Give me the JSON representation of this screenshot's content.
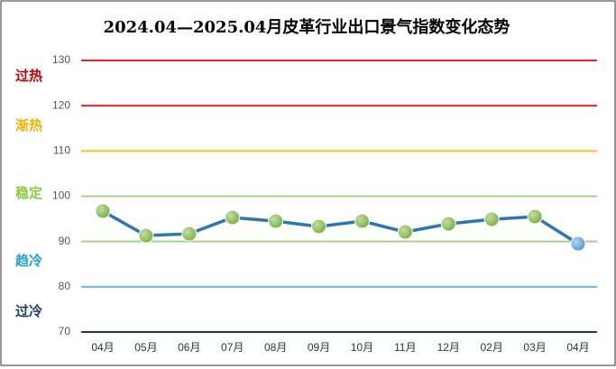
{
  "chart_data": {
    "type": "line",
    "title": "2024.04—2025.04月皮革行业出口景气指数变化态势",
    "categories": [
      "04月",
      "05月",
      "06月",
      "07月",
      "08月",
      "09月",
      "10月",
      "11月",
      "12月",
      "02月",
      "03月",
      "04月"
    ],
    "series": [
      {
        "name": "景气指数",
        "color": "#2e75b6",
        "values": [
          96.7,
          91.3,
          91.7,
          95.3,
          94.5,
          93.3,
          94.5,
          92.1,
          93.9,
          94.9,
          95.5,
          89.5
        ],
        "point_colors": [
          "#7cb342",
          "#7cb342",
          "#7cb342",
          "#7cb342",
          "#7cb342",
          "#7cb342",
          "#7cb342",
          "#7cb342",
          "#7cb342",
          "#7cb342",
          "#7cb342",
          "#5b9bd5"
        ]
      }
    ],
    "ylim": [
      70,
      130
    ],
    "yticks": [
      70,
      80,
      90,
      100,
      110,
      120,
      130
    ],
    "grid": true,
    "grid_colors": [
      "#1f3864",
      "#5bc0eb",
      "#a9d18e",
      "#a9d18e",
      "#f4c020",
      "#e8232a",
      "#e8232a"
    ],
    "annotations": [
      {
        "text": "过热",
        "color": "#c00000"
      },
      {
        "text": "渐热",
        "color": "#f0b400"
      },
      {
        "text": "稳定",
        "color": "#8dc63f"
      },
      {
        "text": "趋冷",
        "color": "#1ca0d8"
      },
      {
        "text": "过冷",
        "color": "#1f3864"
      }
    ]
  }
}
